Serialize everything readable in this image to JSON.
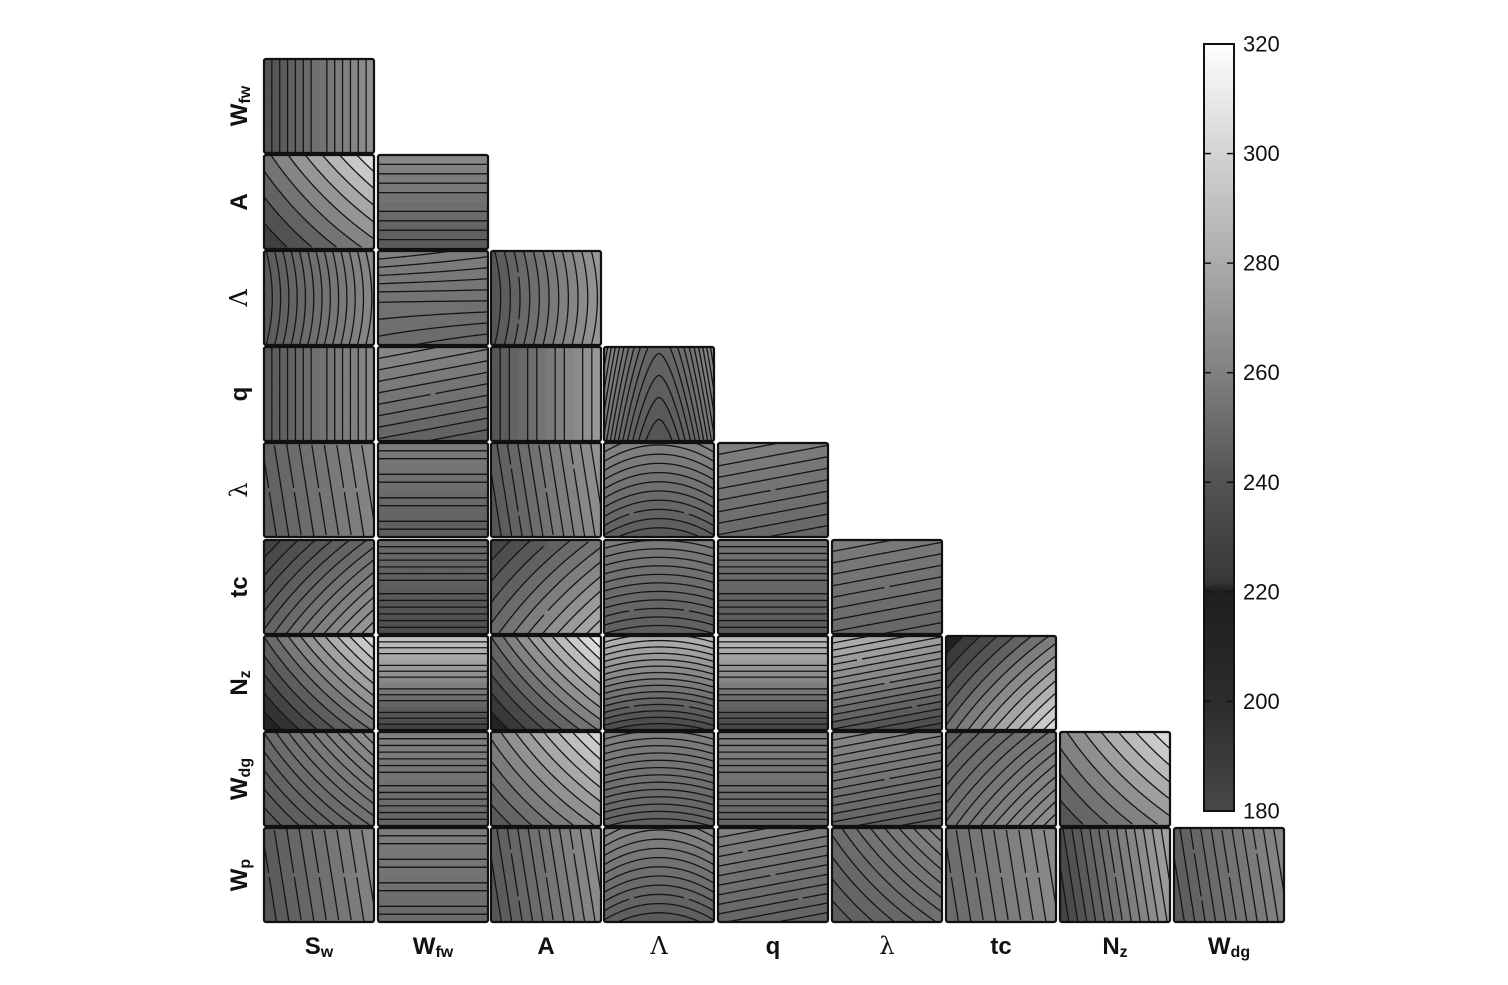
{
  "chart_data": {
    "type": "contour-matrix",
    "title": "",
    "variables": [
      {
        "base": "S",
        "sub": "w",
        "symbol": false
      },
      {
        "base": "W",
        "sub": "fw",
        "symbol": false
      },
      {
        "base": "A",
        "sub": "",
        "symbol": false
      },
      {
        "base": "Λ",
        "sub": "",
        "symbol": true
      },
      {
        "base": "q",
        "sub": "",
        "symbol": false
      },
      {
        "base": "λ",
        "sub": "",
        "symbol": true
      },
      {
        "base": "tc",
        "sub": "",
        "symbol": false
      },
      {
        "base": "N",
        "sub": "z",
        "symbol": false
      },
      {
        "base": "W",
        "sub": "dg",
        "symbol": false
      },
      {
        "base": "W",
        "sub": "p",
        "symbol": false
      }
    ],
    "layout": "lower-triangle",
    "color_scale": "gray",
    "colorbar": {
      "min": 180,
      "max": 320,
      "ticks": [
        180,
        200,
        220,
        240,
        260,
        280,
        300,
        320
      ]
    },
    "panels": [
      {
        "row": 1,
        "col": 0,
        "pattern": "vertical",
        "range": [
          234,
          266
        ],
        "levels": 14
      },
      {
        "row": 2,
        "col": 0,
        "pattern": "diagonal-down",
        "range": [
          222,
          306
        ],
        "levels": 10
      },
      {
        "row": 2,
        "col": 1,
        "pattern": "horizontal",
        "range": [
          238,
          262
        ],
        "levels": 10
      },
      {
        "row": 3,
        "col": 0,
        "pattern": "vertical-arc",
        "range": [
          238,
          262
        ],
        "levels": 14
      },
      {
        "row": 3,
        "col": 1,
        "pattern": "horizontal-wedge",
        "range": [
          246,
          258
        ],
        "levels": 10
      },
      {
        "row": 3,
        "col": 2,
        "pattern": "vertical-arc",
        "range": [
          236,
          270
        ],
        "levels": 12
      },
      {
        "row": 4,
        "col": 0,
        "pattern": "vertical",
        "range": [
          238,
          262
        ],
        "levels": 14
      },
      {
        "row": 4,
        "col": 1,
        "pattern": "horizontal-tilt",
        "range": [
          240,
          262
        ],
        "levels": 10
      },
      {
        "row": 4,
        "col": 2,
        "pattern": "vertical",
        "range": [
          236,
          270
        ],
        "levels": 12
      },
      {
        "row": 4,
        "col": 3,
        "pattern": "peak",
        "range": [
          236,
          262
        ],
        "levels": 14
      },
      {
        "row": 5,
        "col": 0,
        "pattern": "vertical-tilt",
        "range": [
          240,
          262
        ],
        "levels": 10
      },
      {
        "row": 5,
        "col": 1,
        "pattern": "horizontal",
        "range": [
          240,
          256
        ],
        "levels": 12
      },
      {
        "row": 5,
        "col": 2,
        "pattern": "vertical-tilt",
        "range": [
          236,
          268
        ],
        "levels": 12
      },
      {
        "row": 5,
        "col": 3,
        "pattern": "arch",
        "range": [
          238,
          262
        ],
        "levels": 12
      },
      {
        "row": 5,
        "col": 4,
        "pattern": "horizontal-tilt",
        "range": [
          244,
          258
        ],
        "levels": 10
      },
      {
        "row": 6,
        "col": 0,
        "pattern": "diagonal-up",
        "range": [
          226,
          272
        ],
        "levels": 14
      },
      {
        "row": 6,
        "col": 1,
        "pattern": "horizontal",
        "range": [
          232,
          248
        ],
        "levels": 14
      },
      {
        "row": 6,
        "col": 2,
        "pattern": "diagonal-up",
        "range": [
          226,
          282
        ],
        "levels": 12
      },
      {
        "row": 6,
        "col": 3,
        "pattern": "arch-shallow",
        "range": [
          240,
          256
        ],
        "levels": 12
      },
      {
        "row": 6,
        "col": 4,
        "pattern": "horizontal",
        "range": [
          238,
          252
        ],
        "levels": 14
      },
      {
        "row": 6,
        "col": 5,
        "pattern": "horizontal-tilt",
        "range": [
          244,
          256
        ],
        "levels": 10
      },
      {
        "row": 7,
        "col": 0,
        "pattern": "diagonal-down",
        "range": [
          212,
          302
        ],
        "levels": 14
      },
      {
        "row": 7,
        "col": 1,
        "pattern": "horizontal",
        "range": [
          226,
          292
        ],
        "levels": 16
      },
      {
        "row": 7,
        "col": 2,
        "pattern": "diagonal-down",
        "range": [
          212,
          312
        ],
        "levels": 14
      },
      {
        "row": 7,
        "col": 3,
        "pattern": "arch-shallow",
        "range": [
          228,
          286
        ],
        "levels": 16
      },
      {
        "row": 7,
        "col": 4,
        "pattern": "horizontal",
        "range": [
          228,
          288
        ],
        "levels": 16
      },
      {
        "row": 7,
        "col": 5,
        "pattern": "horizontal-tilt",
        "range": [
          228,
          284
        ],
        "levels": 16
      },
      {
        "row": 7,
        "col": 6,
        "pattern": "diagonal-up",
        "range": [
          214,
          304
        ],
        "levels": 14
      },
      {
        "row": 8,
        "col": 0,
        "pattern": "diagonal-down",
        "range": [
          236,
          266
        ],
        "levels": 14
      },
      {
        "row": 8,
        "col": 1,
        "pattern": "horizontal",
        "range": [
          244,
          258
        ],
        "levels": 14
      },
      {
        "row": 8,
        "col": 2,
        "pattern": "diagonal-down",
        "range": [
          236,
          302
        ],
        "levels": 12
      },
      {
        "row": 8,
        "col": 3,
        "pattern": "arch-shallow",
        "range": [
          242,
          258
        ],
        "levels": 14
      },
      {
        "row": 8,
        "col": 4,
        "pattern": "horizontal",
        "range": [
          244,
          258
        ],
        "levels": 14
      },
      {
        "row": 8,
        "col": 5,
        "pattern": "horizontal-tilt",
        "range": [
          240,
          262
        ],
        "levels": 14
      },
      {
        "row": 8,
        "col": 6,
        "pattern": "diagonal-up",
        "range": [
          242,
          266
        ],
        "levels": 14
      },
      {
        "row": 8,
        "col": 7,
        "pattern": "diagonal-down",
        "range": [
          234,
          304
        ],
        "levels": 10
      },
      {
        "row": 9,
        "col": 0,
        "pattern": "vertical-tilt",
        "range": [
          236,
          262
        ],
        "levels": 10
      },
      {
        "row": 9,
        "col": 1,
        "pattern": "horizontal",
        "range": [
          246,
          256
        ],
        "levels": 12
      },
      {
        "row": 9,
        "col": 2,
        "pattern": "vertical-tilt",
        "range": [
          236,
          266
        ],
        "levels": 12
      },
      {
        "row": 9,
        "col": 3,
        "pattern": "arch",
        "range": [
          238,
          262
        ],
        "levels": 12
      },
      {
        "row": 9,
        "col": 4,
        "pattern": "horizontal-tilt",
        "range": [
          242,
          258
        ],
        "levels": 12
      },
      {
        "row": 9,
        "col": 5,
        "pattern": "diagonal-down",
        "range": [
          240,
          260
        ],
        "levels": 12
      },
      {
        "row": 9,
        "col": 6,
        "pattern": "vertical-tilt",
        "range": [
          246,
          264
        ],
        "levels": 10
      },
      {
        "row": 9,
        "col": 7,
        "pattern": "vertical-tilt",
        "range": [
          226,
          276
        ],
        "levels": 14
      },
      {
        "row": 9,
        "col": 8,
        "pattern": "vertical-tilt",
        "range": [
          238,
          262
        ],
        "levels": 12
      }
    ]
  }
}
